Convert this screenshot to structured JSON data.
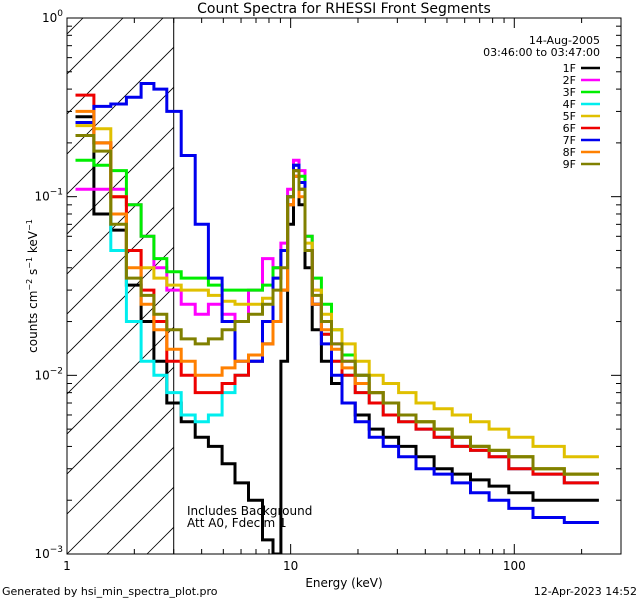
{
  "chart_data": {
    "type": "line",
    "title": "Count Spectra for RHESSI Front Segments",
    "xlabel": "Energy (keV)",
    "ylabel_parts": {
      "a": "counts cm",
      "b": "−2",
      "c": " s",
      "d": "−1",
      "e": " keV",
      "f": "−1"
    },
    "xscale": "log",
    "yscale": "log",
    "xlim": [
      1,
      300
    ],
    "ylim": [
      0.001,
      1
    ],
    "x_ticks": [
      {
        "v": 1,
        "label": "1"
      },
      {
        "v": 10,
        "label": "10"
      },
      {
        "v": 100,
        "label": "100"
      }
    ],
    "y_ticks": [
      {
        "v": 0.001,
        "base": "10",
        "exp": "−3"
      },
      {
        "v": 0.01,
        "base": "10",
        "exp": "−2"
      },
      {
        "v": 0.1,
        "base": "10",
        "exp": "−1"
      },
      {
        "v": 1,
        "base": "10",
        "exp": "0"
      }
    ],
    "attenuator_cutoff_kev": 3,
    "date": "14-Aug-2005",
    "time_range": "03:46:00 to 03:47:00",
    "annotation_lines": [
      "Includes Background",
      "Att A0, Fdecim 1"
    ],
    "legend_position": "top-right",
    "series": [
      {
        "name": "1F",
        "color": "#000000",
        "values": [
          0.28,
          0.08,
          0.065,
          0.032,
          0.02,
          0.012,
          0.007,
          0.0055,
          0.0045,
          0.004,
          0.0032,
          0.0025,
          0.002,
          0.0012,
          0.001,
          0.012,
          0.07,
          0.13,
          0.09,
          0.04,
          0.018,
          0.012,
          0.009,
          0.007,
          0.006,
          0.005,
          0.0045,
          0.004,
          0.0035,
          0.003,
          0.0028,
          0.0026,
          0.0024,
          0.0022,
          0.002,
          0.002
        ]
      },
      {
        "name": "2F",
        "color": "#ff00ff",
        "values": [
          0.11,
          0.11,
          0.11,
          0.09,
          0.06,
          0.04,
          0.03,
          0.025,
          0.022,
          0.025,
          0.022,
          0.02,
          0.03,
          0.045,
          0.04,
          0.055,
          0.11,
          0.16,
          0.14,
          0.06,
          0.03,
          0.02,
          0.015,
          0.012,
          0.01,
          0.008,
          0.007,
          0.006,
          0.005,
          0.0045,
          0.004,
          0.0038,
          0.0035,
          0.003,
          0.0028,
          0.0025
        ]
      },
      {
        "name": "3F",
        "color": "#00ee00",
        "values": [
          0.16,
          0.15,
          0.14,
          0.09,
          0.06,
          0.045,
          0.038,
          0.035,
          0.035,
          0.032,
          0.03,
          0.03,
          0.03,
          0.032,
          0.04,
          0.05,
          0.1,
          0.15,
          0.13,
          0.06,
          0.035,
          0.025,
          0.018,
          0.013,
          0.01,
          0.008,
          0.007,
          0.006,
          0.0055,
          0.005,
          0.0045,
          0.004,
          0.0038,
          0.0035,
          0.003,
          0.0028
        ]
      },
      {
        "name": "4F",
        "color": "#00eeee",
        "values": [
          0.22,
          0.2,
          0.05,
          0.02,
          0.012,
          0.01,
          0.008,
          0.006,
          0.0055,
          0.006,
          0.008,
          0.01,
          0.012,
          0.015,
          0.02,
          0.03,
          0.09,
          0.14,
          0.11,
          0.05,
          0.025,
          0.017,
          0.012,
          0.01,
          0.008,
          0.007,
          0.006,
          0.0055,
          0.005,
          0.0045,
          0.004,
          0.0038,
          0.0035,
          0.003,
          0.0028,
          0.0025
        ]
      },
      {
        "name": "5F",
        "color": "#e0c000",
        "values": [
          0.25,
          0.24,
          0.1,
          0.05,
          0.04,
          0.035,
          0.032,
          0.03,
          0.03,
          0.028,
          0.026,
          0.025,
          0.025,
          0.027,
          0.035,
          0.05,
          0.1,
          0.14,
          0.12,
          0.055,
          0.03,
          0.022,
          0.018,
          0.015,
          0.012,
          0.01,
          0.009,
          0.008,
          0.007,
          0.0065,
          0.006,
          0.0055,
          0.005,
          0.0045,
          0.004,
          0.0035
        ]
      },
      {
        "name": "6F",
        "color": "#ee0000",
        "values": [
          0.37,
          0.2,
          0.1,
          0.05,
          0.03,
          0.02,
          0.012,
          0.01,
          0.008,
          0.008,
          0.009,
          0.01,
          0.012,
          0.015,
          0.02,
          0.03,
          0.09,
          0.14,
          0.11,
          0.05,
          0.025,
          0.017,
          0.012,
          0.01,
          0.008,
          0.007,
          0.006,
          0.0055,
          0.005,
          0.0045,
          0.004,
          0.0038,
          0.0035,
          0.003,
          0.0028,
          0.0025
        ]
      },
      {
        "name": "7F",
        "color": "#0000ee",
        "values": [
          0.26,
          0.32,
          0.33,
          0.36,
          0.43,
          0.4,
          0.3,
          0.17,
          0.07,
          0.035,
          0.02,
          0.012,
          0.012,
          0.02,
          0.035,
          0.05,
          0.1,
          0.15,
          0.12,
          0.05,
          0.025,
          0.015,
          0.01,
          0.007,
          0.0055,
          0.0045,
          0.004,
          0.0035,
          0.003,
          0.0028,
          0.0025,
          0.0022,
          0.002,
          0.0018,
          0.0016,
          0.0015
        ]
      },
      {
        "name": "8F",
        "color": "#ff8000",
        "values": [
          0.3,
          0.2,
          0.08,
          0.04,
          0.025,
          0.018,
          0.014,
          0.012,
          0.01,
          0.01,
          0.011,
          0.012,
          0.013,
          0.015,
          0.02,
          0.03,
          0.09,
          0.13,
          0.1,
          0.05,
          0.025,
          0.018,
          0.014,
          0.011,
          0.009,
          0.008,
          0.007,
          0.006,
          0.0055,
          0.005,
          0.0045,
          0.004,
          0.0038,
          0.0035,
          0.003,
          0.0028
        ]
      },
      {
        "name": "9F",
        "color": "#808000",
        "values": [
          0.22,
          0.18,
          0.07,
          0.035,
          0.028,
          0.022,
          0.018,
          0.016,
          0.015,
          0.016,
          0.018,
          0.02,
          0.022,
          0.025,
          0.03,
          0.04,
          0.1,
          0.14,
          0.11,
          0.05,
          0.028,
          0.02,
          0.015,
          0.012,
          0.01,
          0.008,
          0.007,
          0.006,
          0.0055,
          0.005,
          0.0045,
          0.004,
          0.0038,
          0.0035,
          0.003,
          0.0028
        ]
      }
    ],
    "energy_bins_kev": [
      1.2,
      1.45,
      1.7,
      2.0,
      2.3,
      2.6,
      3.0,
      3.5,
      4.0,
      4.6,
      5.3,
      6.0,
      7.0,
      8.0,
      8.7,
      9.4,
      10.0,
      10.6,
      11.2,
      12.0,
      13.0,
      14.5,
      16.0,
      18.0,
      21.0,
      24.0,
      28.0,
      33.0,
      40.0,
      48.0,
      58.0,
      70.0,
      85.0,
      105.0,
      140.0,
      200.0
    ]
  },
  "footer": {
    "generated_by": "Generated by hsi_min_spectra_plot.pro",
    "timestamp": "12-Apr-2023 14:52"
  }
}
